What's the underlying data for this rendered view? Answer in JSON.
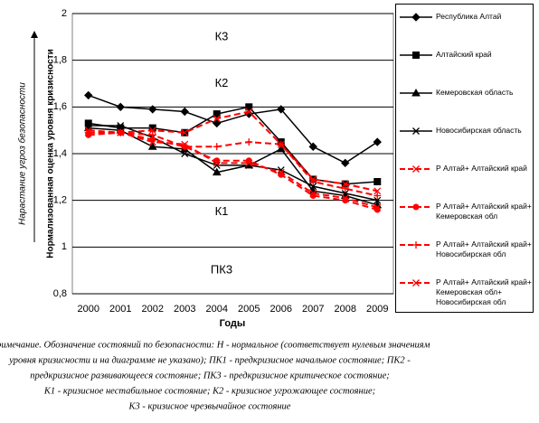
{
  "chart_data": {
    "type": "line",
    "ylabel": "Нормализованная оценка уровня кризисности",
    "ylabel2": "Нарастание угроз безопасности",
    "xlabel": "Годы",
    "categories": [
      "2000",
      "2001",
      "2002",
      "2003",
      "2004",
      "2005",
      "2006",
      "2007",
      "2008",
      "2009"
    ],
    "ylim": [
      0.8,
      2
    ],
    "yticks": [
      {
        "value": 0.8,
        "label": "0,8"
      },
      1,
      {
        "value": 1.2,
        "label": "1,2"
      },
      {
        "value": 1.4,
        "label": "1,4"
      },
      {
        "value": 1.6,
        "label": "1,6"
      },
      {
        "value": 1.8,
        "label": "1,8"
      },
      2
    ],
    "grid": true,
    "zones": [
      {
        "label": "К3",
        "value": 1.9
      },
      {
        "label": "К2",
        "value": 1.7
      },
      {
        "label": "К1",
        "value": 1.15
      },
      {
        "label": "ПК3",
        "value": 0.9
      }
    ],
    "series": [
      {
        "name": "Республика Алтай",
        "color": "#000000",
        "marker": "diamond",
        "dash": false,
        "values": [
          1.65,
          1.6,
          1.59,
          1.58,
          1.53,
          1.57,
          1.59,
          1.43,
          1.36,
          1.45
        ]
      },
      {
        "name": "Алтайский край",
        "color": "#000000",
        "marker": "square",
        "dash": false,
        "values": [
          1.53,
          1.51,
          1.51,
          1.49,
          1.57,
          1.6,
          1.45,
          1.29,
          1.27,
          1.28
        ]
      },
      {
        "name": "Кемеровская область",
        "color": "#000000",
        "marker": "triangle",
        "dash": false,
        "values": [
          1.51,
          1.5,
          1.43,
          1.42,
          1.32,
          1.35,
          1.42,
          1.24,
          1.22,
          1.18
        ]
      },
      {
        "name": "Новосибирская область",
        "color": "#000000",
        "marker": "x",
        "dash": false,
        "values": [
          1.52,
          1.52,
          1.47,
          1.4,
          1.35,
          1.35,
          1.33,
          1.26,
          1.23,
          1.2
        ]
      },
      {
        "name": "Р Алтай+ Алтайский край",
        "color": "#ff0000",
        "marker": "x",
        "dash": true,
        "values": [
          1.49,
          1.49,
          1.5,
          1.49,
          1.55,
          1.58,
          1.44,
          1.29,
          1.27,
          1.24
        ]
      },
      {
        "name": "Р Алтай+ Алтайский край+ Кемеровская обл",
        "color": "#ff0000",
        "marker": "circle",
        "dash": true,
        "values": [
          1.48,
          1.49,
          1.46,
          1.43,
          1.37,
          1.37,
          1.31,
          1.22,
          1.2,
          1.16
        ]
      },
      {
        "name": "Р Алтай+ Алтайский край+ Новосибирская обл",
        "color": "#ff0000",
        "marker": "plus",
        "dash": true,
        "values": [
          1.49,
          1.49,
          1.48,
          1.43,
          1.43,
          1.45,
          1.44,
          1.28,
          1.25,
          1.22
        ]
      },
      {
        "name": "Р Алтай+ Алтайский край+ Кемеровская обл+ Новосибирская обл",
        "color": "#ff0000",
        "marker": "x",
        "dash": true,
        "values": [
          1.5,
          1.49,
          1.45,
          1.44,
          1.36,
          1.36,
          1.32,
          1.23,
          1.21,
          1.17
        ]
      }
    ],
    "note": [
      "Примечание. Обозначение состояний по безопасности: Н - нормальное (соответствует нулевым значениям",
      "уровня кризисности и на диаграмме не указано); ПК1 - предкризисное начальное состояние; ПК2 -",
      "предкризисное развивающееся состояние; ПК3 - предкризисное критическое состояние;",
      "К1 - кризисное нестабильное состояние; К2 - кризисное угрожающее состояние;",
      "К3 - кризисное чрезвычайное состояние"
    ]
  }
}
